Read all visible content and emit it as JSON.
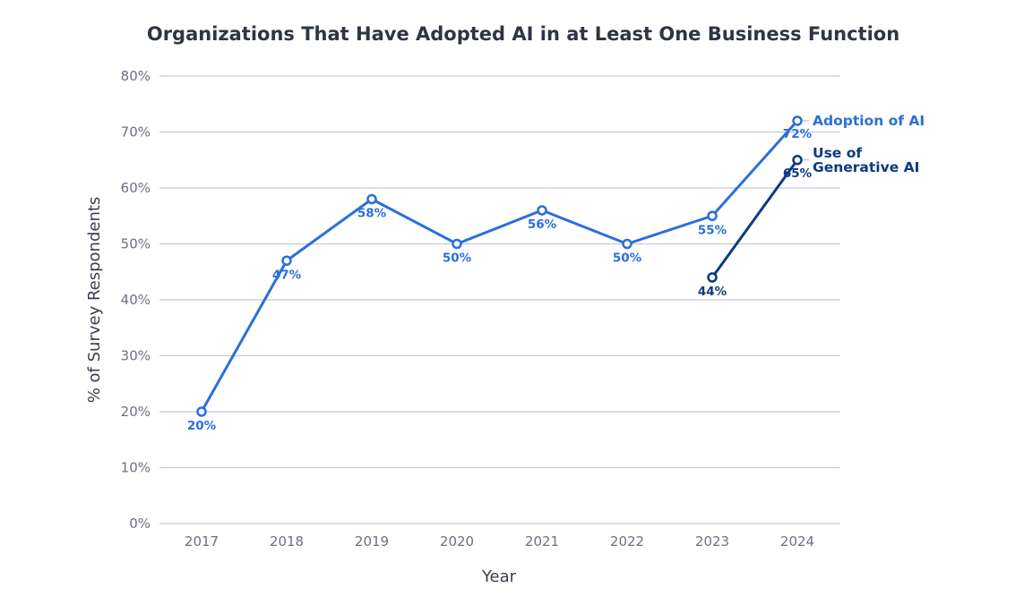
{
  "chart_data": {
    "type": "line",
    "title": "Organizations That Have Adopted AI in at Least One Business Function",
    "xlabel": "Year",
    "ylabel": "% of Survey Respondents",
    "categories": [
      "2017",
      "2018",
      "2019",
      "2020",
      "2021",
      "2022",
      "2023",
      "2024"
    ],
    "ylim": [
      0,
      80
    ],
    "yticks": [
      "0%",
      "10%",
      "20%",
      "30%",
      "40%",
      "50%",
      "60%",
      "70%",
      "80%"
    ],
    "grid": true,
    "legend": "direct labels at right end of lines",
    "series": [
      {
        "name": "Adoption of AI",
        "color": "#2a6fdb",
        "values": [
          20,
          47,
          58,
          50,
          56,
          50,
          55,
          72
        ],
        "labels": [
          "20%",
          "47%",
          "58%",
          "50%",
          "56%",
          "50%",
          "55%",
          "72%"
        ]
      },
      {
        "name_lines": [
          "Use of",
          "Generative AI"
        ],
        "color": "#0b3a82",
        "values": [
          null,
          null,
          null,
          null,
          null,
          null,
          44,
          65
        ],
        "labels": [
          null,
          null,
          null,
          null,
          null,
          null,
          "44%",
          "65%"
        ]
      }
    ]
  }
}
